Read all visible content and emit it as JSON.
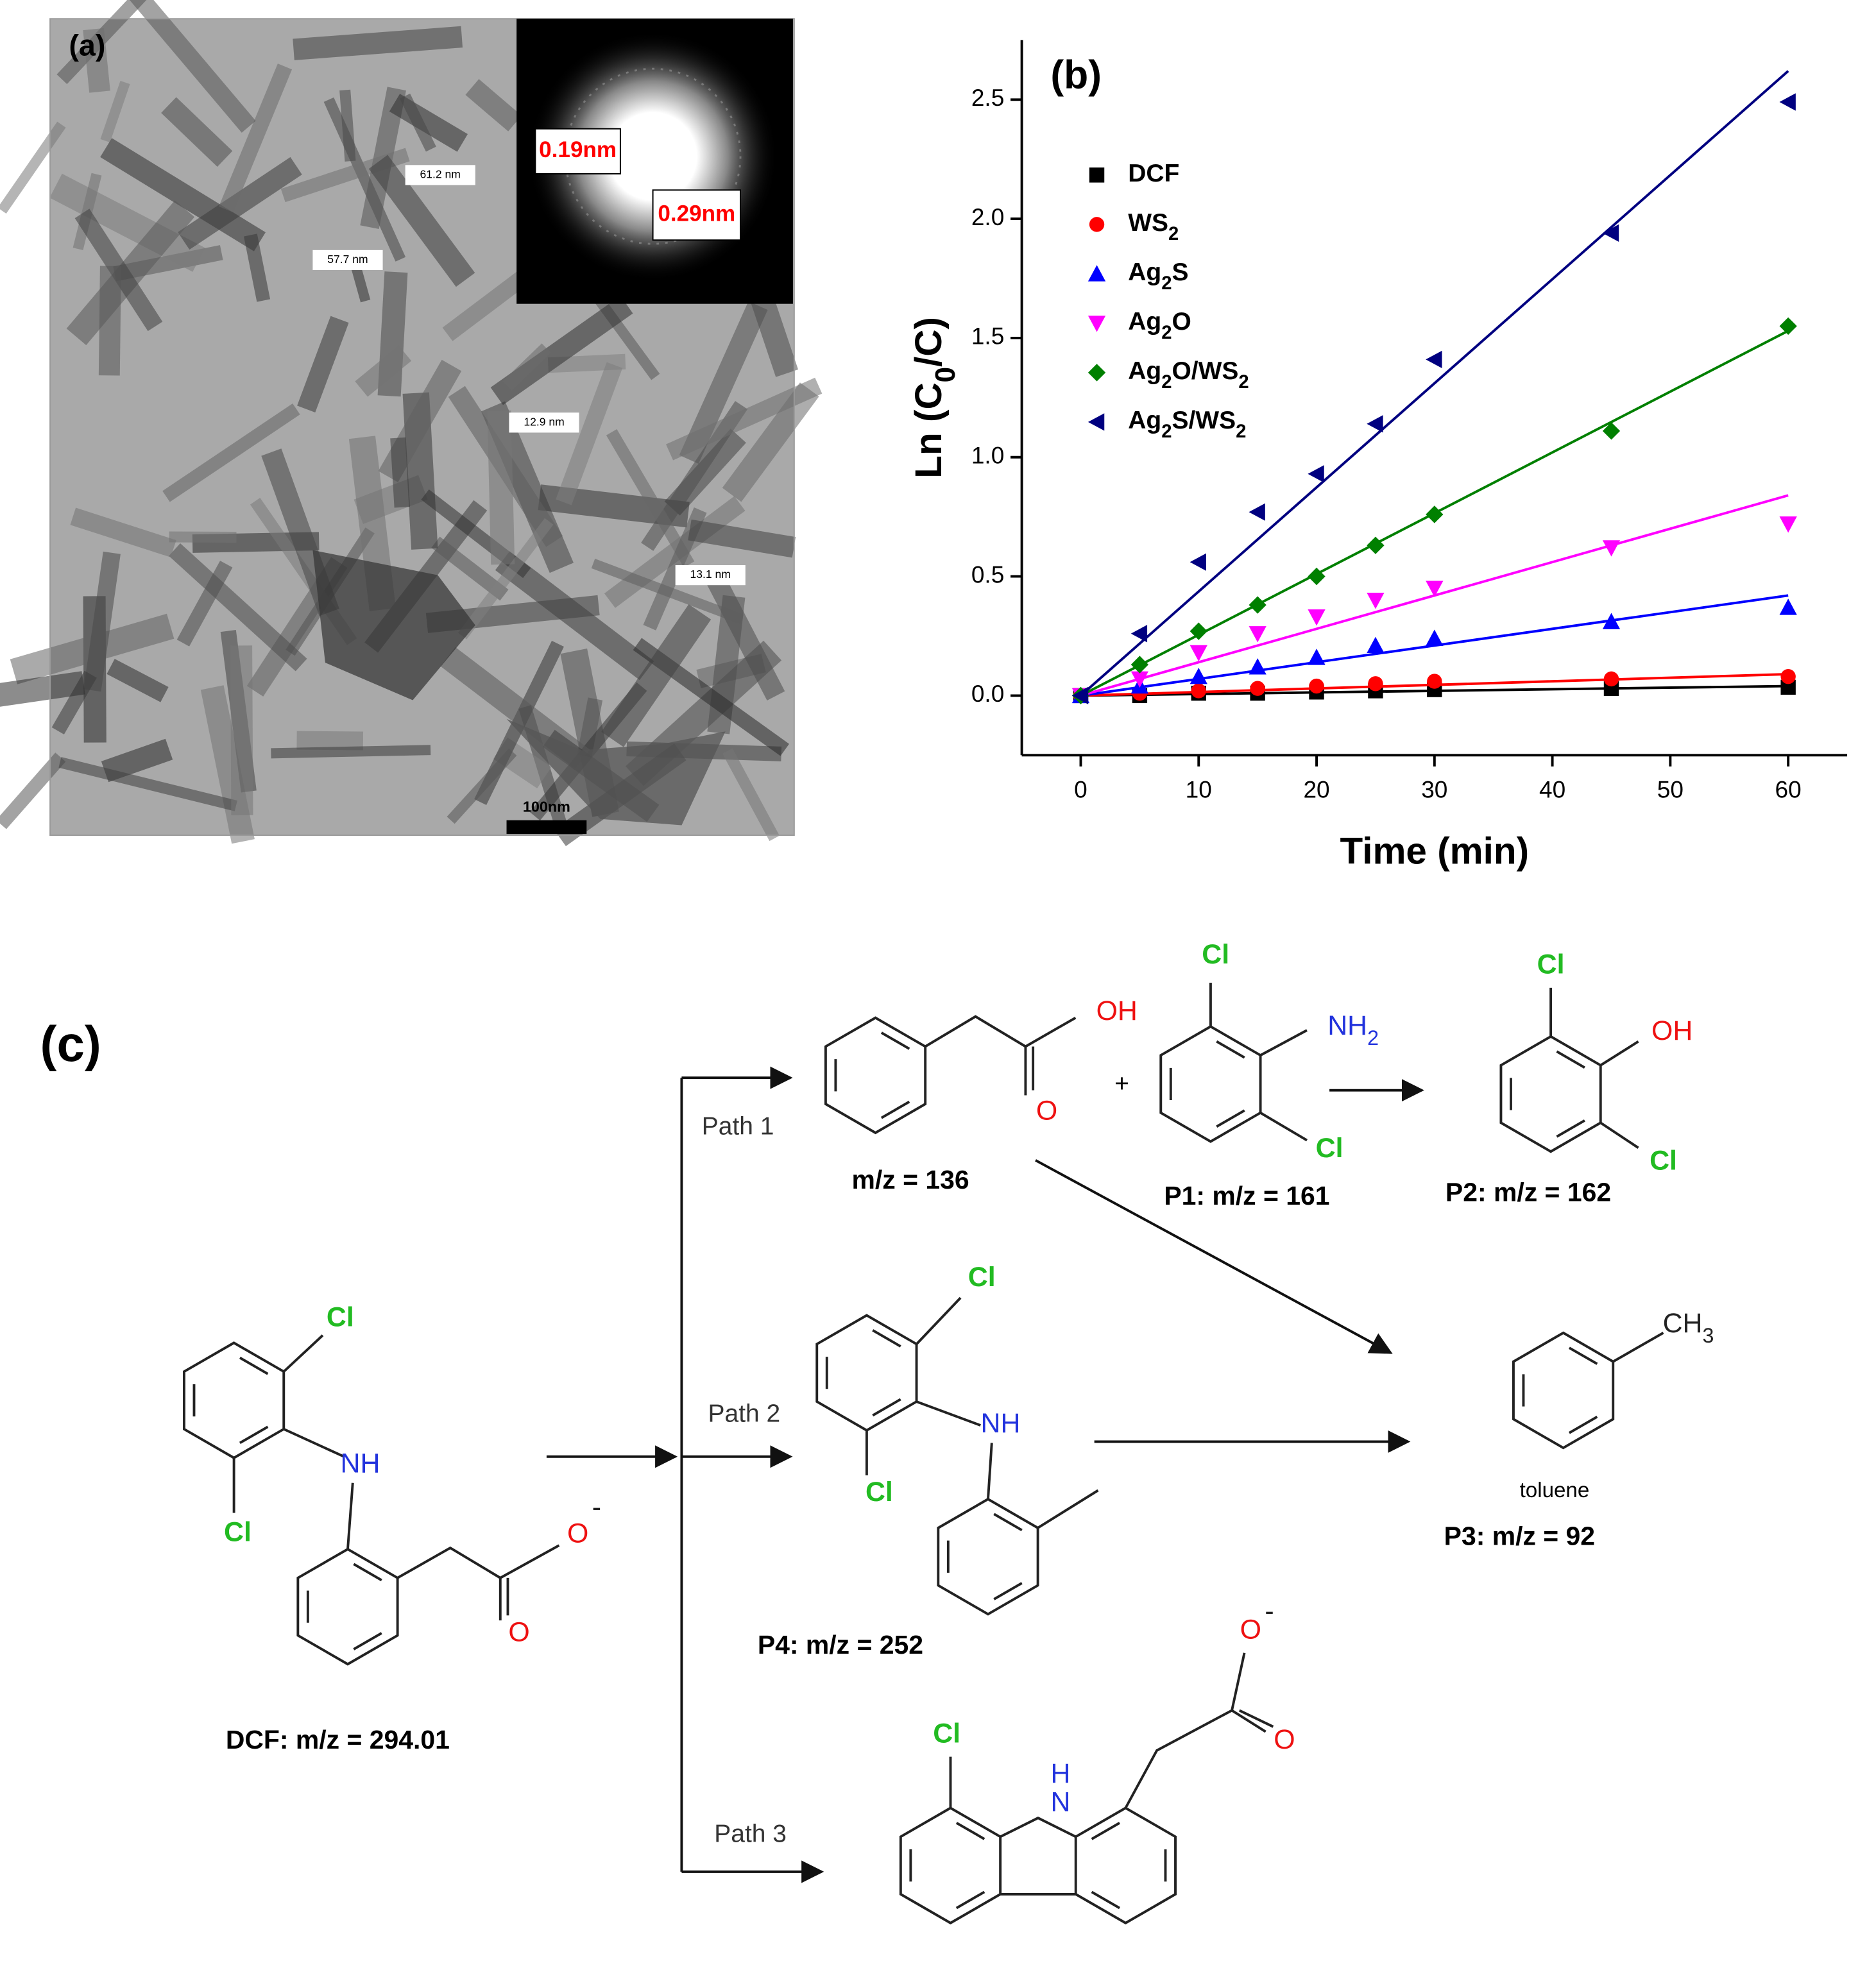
{
  "tem_image": {
    "label": "(a)",
    "d_spacings": [
      "0.19nm",
      "0.29nm"
    ],
    "measurements": [
      "61.2 nm",
      "57.7 nm",
      "12.9 nm",
      "13.1 nm"
    ],
    "scale_bar": "100nm"
  },
  "chart_data": {
    "type": "scatter",
    "label": "(b)",
    "x_label": "Time (min)",
    "y_label": "Ln (C0/C)",
    "x": [
      0,
      5,
      10,
      15,
      20,
      25,
      30,
      45,
      60
    ],
    "fit_x": [
      0,
      60
    ],
    "series": [
      {
        "name": "DCF",
        "color": "#000000",
        "marker": "square",
        "values": [
          0,
          0.0,
          0.01,
          0.01,
          0.015,
          0.02,
          0.025,
          0.03,
          0.035
        ],
        "fit_values": [
          0,
          0.04
        ]
      },
      {
        "name": "WS2",
        "color": "#ff0000",
        "marker": "circle",
        "values": [
          0,
          0.01,
          0.02,
          0.03,
          0.04,
          0.05,
          0.06,
          0.07,
          0.08
        ],
        "fit_values": [
          0,
          0.09
        ]
      },
      {
        "name": "Ag2S",
        "color": "#0000ff",
        "marker": "triangle-up",
        "values": [
          0,
          0.04,
          0.08,
          0.12,
          0.16,
          0.21,
          0.24,
          0.31,
          0.37
        ],
        "fit_values": [
          0,
          0.42
        ]
      },
      {
        "name": "Ag2O",
        "color": "#ff00ff",
        "marker": "triangle-down",
        "values": [
          0,
          0.07,
          0.18,
          0.26,
          0.33,
          0.4,
          0.45,
          0.62,
          0.72
        ],
        "fit_values": [
          0,
          0.84
        ]
      },
      {
        "name": "Ag2O/WS2",
        "color": "#008000",
        "marker": "diamond",
        "values": [
          0,
          0.13,
          0.27,
          0.38,
          0.5,
          0.63,
          0.76,
          1.11,
          1.55
        ],
        "fit_values": [
          0,
          1.53
        ]
      },
      {
        "name": "Ag2S/WS2",
        "color": "#000080",
        "marker": "triangle-left",
        "values": [
          0,
          0.26,
          0.56,
          0.77,
          0.93,
          1.14,
          1.41,
          1.94,
          2.49
        ],
        "fit_values": [
          0,
          2.62
        ]
      }
    ],
    "xlim": [
      -5,
      65
    ],
    "xticks": [
      0,
      10,
      20,
      30,
      40,
      50,
      60
    ],
    "ylim": [
      -0.25,
      2.75
    ],
    "yticks": [
      {
        "value": 0,
        "label": "0.0"
      },
      0.5,
      {
        "value": 1,
        "label": "1.0"
      },
      1.5,
      {
        "value": 2,
        "label": "2.0"
      },
      2.5
    ],
    "grid": false
  },
  "scheme": {
    "label": "(c)",
    "paths": [
      "Path 1",
      "Path 2",
      "Path 3"
    ],
    "plus": "+",
    "atoms": [
      "OH",
      "O",
      "Cl",
      "NH2",
      "Cl",
      "Cl",
      "OH",
      "Cl",
      "Cl",
      "NH",
      "Cl",
      "CH3",
      "Cl",
      "NH",
      "Cl",
      "O",
      "-",
      "O",
      "Cl",
      "H",
      "N",
      "O",
      "-",
      "O"
    ],
    "captions": [
      "m/z = 136",
      "P1:  m/z = 161",
      "P2:  m/z = 162",
      "P4:   m/z = 252",
      "toluene",
      "P3:    m/z = 92",
      "DCF: m/z = 294.01"
    ]
  }
}
